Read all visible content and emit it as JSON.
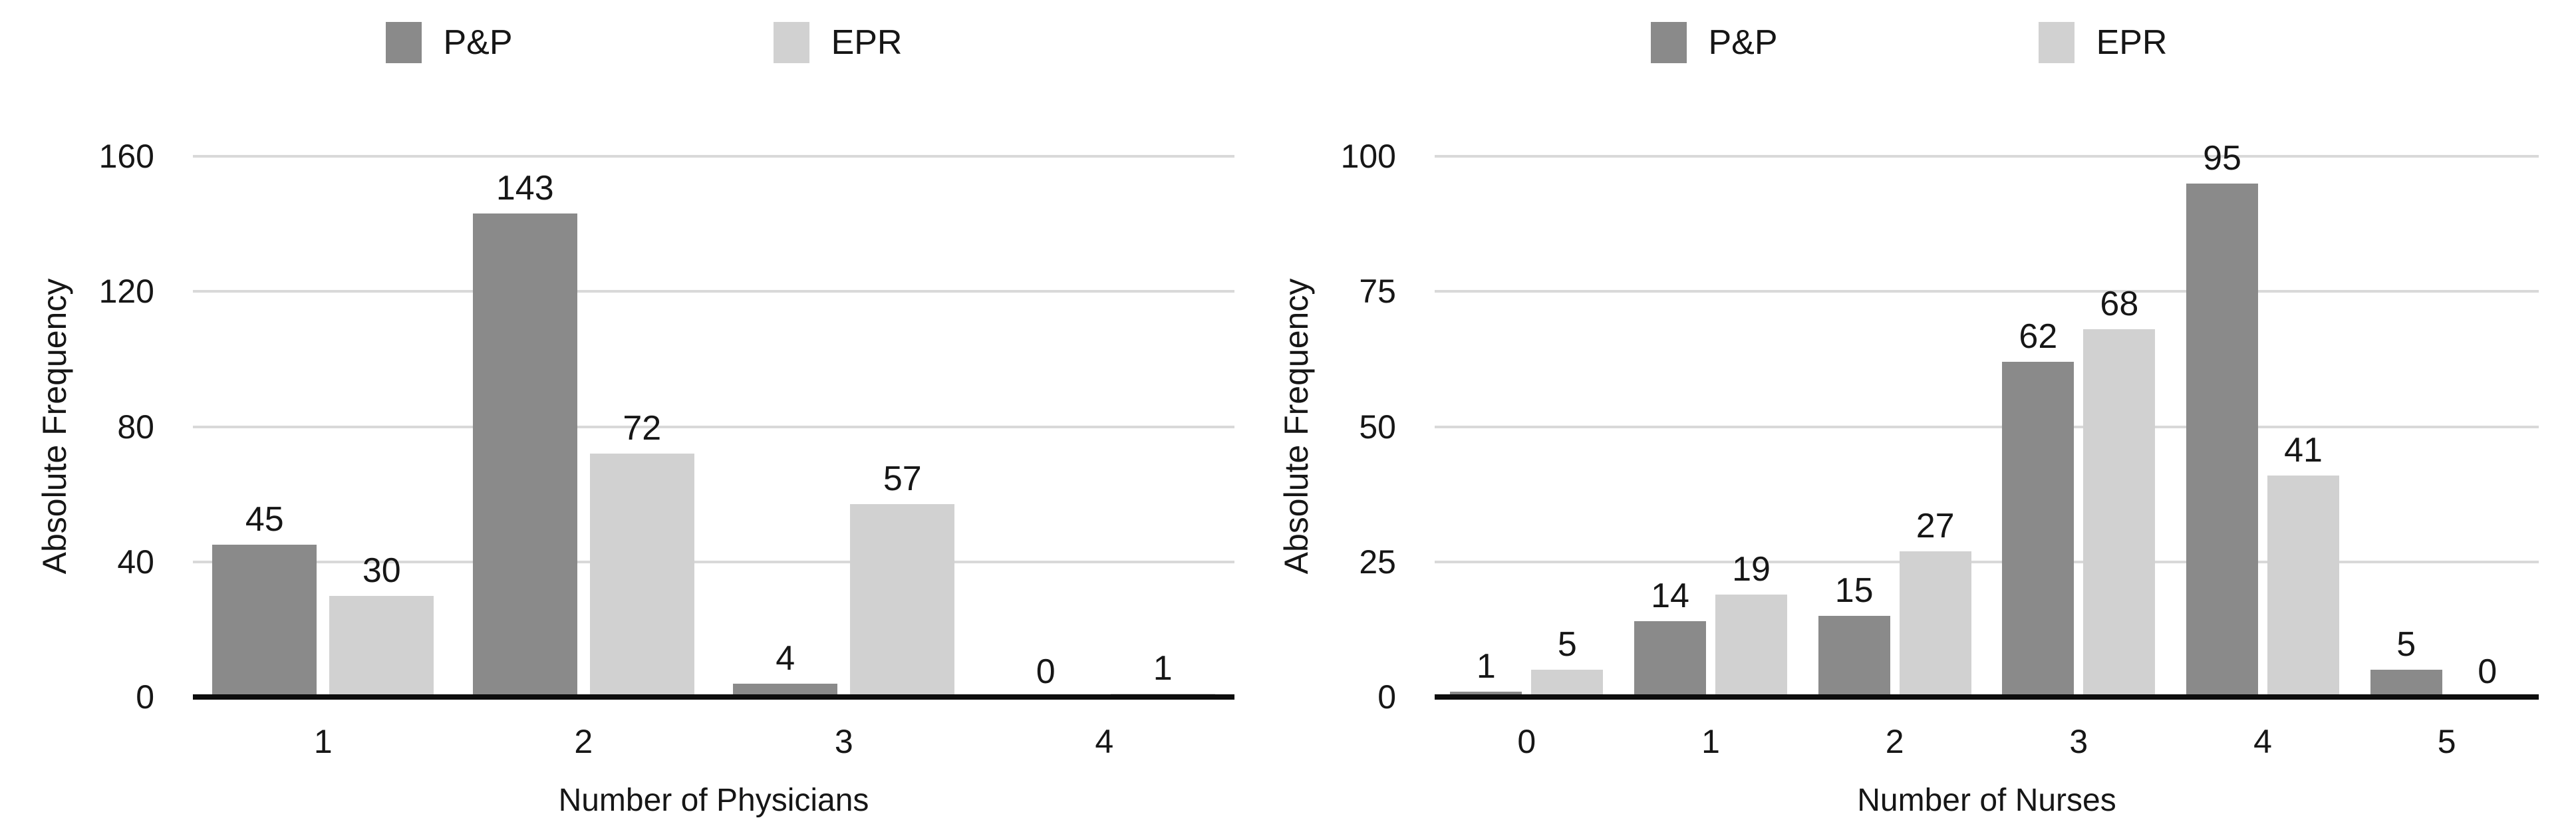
{
  "colors": {
    "pp_bar": "#8a8a8a",
    "epr_bar": "#d1d1d1",
    "gridline": "#d9d9d9",
    "axis_line": "#0d0d0d",
    "text": "#161616"
  },
  "chart_data": [
    {
      "type": "bar",
      "title": "",
      "xlabel": "Number of Physicians",
      "ylabel": "Absolute Frequency",
      "categories": [
        "1",
        "2",
        "3",
        "4"
      ],
      "series": [
        {
          "name": "P&P",
          "values": [
            45,
            143,
            4,
            0
          ]
        },
        {
          "name": "EPR",
          "values": [
            30,
            72,
            57,
            1
          ]
        }
      ],
      "ylim": [
        0,
        160
      ],
      "yticks": [
        0,
        40,
        80,
        120,
        160
      ],
      "data_labels": true,
      "grid": true,
      "legend_position": "top"
    },
    {
      "type": "bar",
      "title": "",
      "xlabel": "Number of Nurses",
      "ylabel": "Absolute Frequency",
      "categories": [
        "0",
        "1",
        "2",
        "3",
        "4",
        "5"
      ],
      "series": [
        {
          "name": "P&P",
          "values": [
            1,
            14,
            15,
            62,
            95,
            5
          ]
        },
        {
          "name": "EPR",
          "values": [
            5,
            19,
            27,
            68,
            41,
            0
          ]
        }
      ],
      "ylim": [
        0,
        100
      ],
      "yticks": [
        0,
        25,
        50,
        75,
        100
      ],
      "data_labels": true,
      "grid": true,
      "legend_position": "top"
    }
  ]
}
